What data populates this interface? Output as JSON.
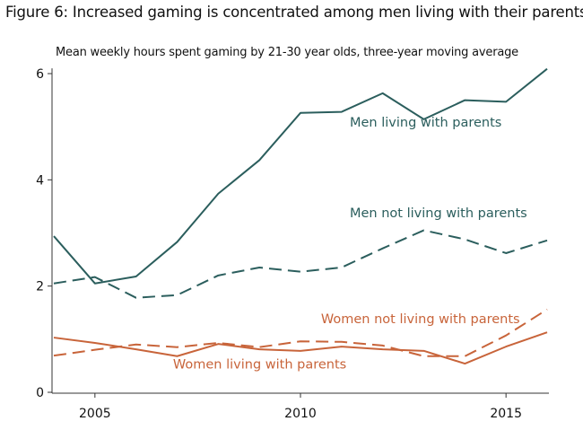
{
  "chart_data": {
    "type": "line",
    "title": "Figure 6: Increased gaming is concentrated among men living with their parents",
    "subtitle": "Mean weekly hours spent gaming by 21-30 year olds, three-year moving average",
    "xlabel": "",
    "ylabel": "",
    "xlim": [
      2004,
      2016
    ],
    "ylim": [
      0,
      6.2
    ],
    "xticks": [
      2005,
      2010,
      2015
    ],
    "yticks": [
      0,
      2,
      4,
      6
    ],
    "x": [
      2004,
      2005,
      2006,
      2007,
      2008,
      2009,
      2010,
      2011,
      2012,
      2013,
      2014,
      2015,
      2016
    ],
    "series": [
      {
        "name": "Men living with parents",
        "color": "#2b5e5d",
        "dash": false,
        "values": [
          2.94,
          2.05,
          2.18,
          2.83,
          3.74,
          4.37,
          5.26,
          5.28,
          5.63,
          5.14,
          5.5,
          5.47,
          6.09
        ]
      },
      {
        "name": "Men not living with parents",
        "color": "#2b5e5d",
        "dash": true,
        "values": [
          2.05,
          2.17,
          1.78,
          1.83,
          2.2,
          2.35,
          2.27,
          2.35,
          2.71,
          3.05,
          2.88,
          2.62,
          2.86
        ]
      },
      {
        "name": "Women not living with parents",
        "color": "#c8643a",
        "dash": true,
        "values": [
          0.69,
          0.8,
          0.9,
          0.85,
          0.93,
          0.85,
          0.96,
          0.95,
          0.88,
          0.68,
          0.68,
          1.07,
          1.56
        ]
      },
      {
        "name": "Women living with parents",
        "color": "#c8643a",
        "dash": false,
        "values": [
          1.03,
          0.93,
          0.81,
          0.68,
          0.91,
          0.81,
          0.78,
          0.86,
          0.81,
          0.78,
          0.54,
          0.86,
          1.13
        ]
      }
    ],
    "annotations": [
      {
        "text": "Men living with parents",
        "series": 0,
        "at": [
          2011.2,
          5.0
        ]
      },
      {
        "text": "Men not living with parents",
        "series": 1,
        "at": [
          2011.2,
          3.3
        ]
      },
      {
        "text": "Women not living with parents",
        "series": 2,
        "at": [
          2010.5,
          1.3
        ]
      },
      {
        "text": "Women living with parents",
        "series": 3,
        "at": [
          2006.9,
          0.45
        ]
      }
    ]
  }
}
